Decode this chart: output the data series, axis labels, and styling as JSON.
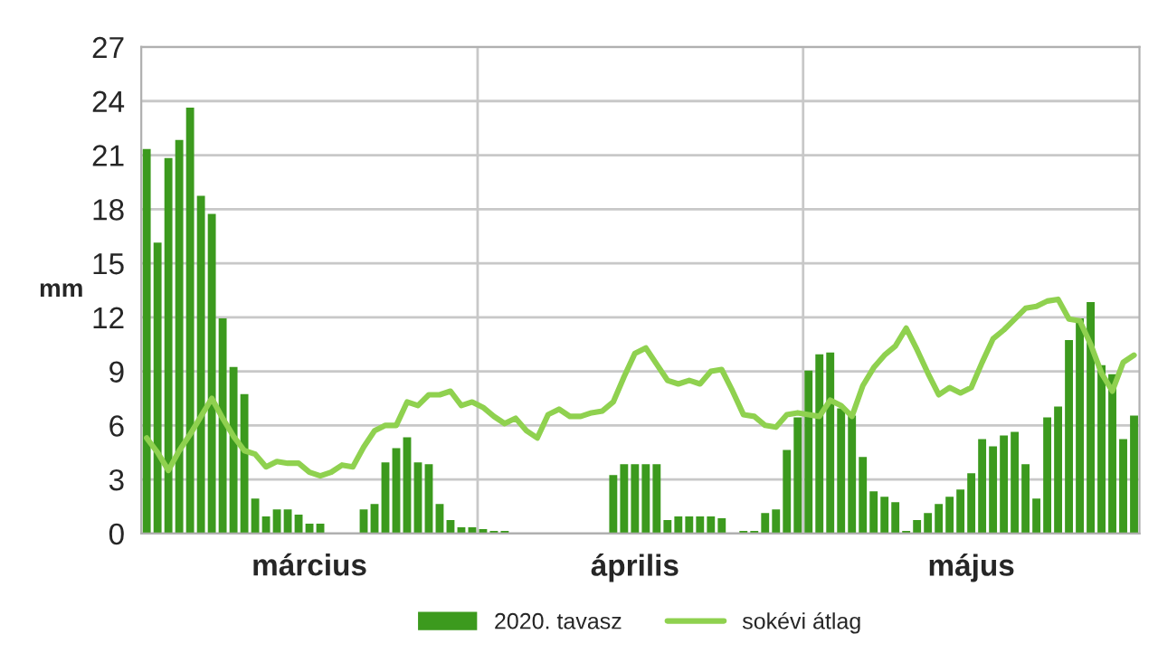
{
  "chart_data": {
    "type": "bar",
    "categories": [
      null,
      null,
      null,
      null,
      null,
      null,
      null,
      null,
      null,
      null,
      null,
      null,
      null,
      null,
      null,
      "március",
      null,
      null,
      null,
      null,
      null,
      null,
      null,
      null,
      null,
      null,
      null,
      null,
      null,
      null,
      null,
      null,
      null,
      null,
      null,
      null,
      null,
      null,
      null,
      null,
      null,
      null,
      null,
      null,
      null,
      "április",
      null,
      null,
      null,
      null,
      null,
      null,
      null,
      null,
      null,
      null,
      null,
      null,
      null,
      null,
      null,
      null,
      null,
      null,
      null,
      null,
      null,
      null,
      null,
      null,
      null,
      null,
      null,
      null,
      null,
      null,
      "május",
      null,
      null,
      null,
      null,
      null,
      null,
      null,
      null,
      null,
      null,
      null,
      null,
      null,
      null,
      null
    ],
    "series": [
      {
        "name": "2020. tavasz",
        "color": "#3c9a1e",
        "values": [
          21.3,
          16.1,
          20.8,
          21.8,
          23.6,
          18.7,
          17.7,
          11.9,
          9.2,
          7.7,
          1.9,
          0.9,
          1.3,
          1.3,
          1.0,
          0.5,
          0.5,
          0,
          0,
          0,
          1.3,
          1.6,
          3.9,
          4.7,
          5.3,
          3.9,
          3.8,
          1.6,
          0.7,
          0.3,
          0.3,
          0.2,
          0.1,
          0.1,
          0,
          0,
          0,
          0,
          0,
          0,
          0,
          0,
          0,
          3.2,
          3.8,
          3.8,
          3.8,
          3.8,
          0.7,
          0.9,
          0.9,
          0.9,
          0.9,
          0.8,
          0,
          0.1,
          0.1,
          1.1,
          1.3,
          4.6,
          6.4,
          9.0,
          9.9,
          10.0,
          6.9,
          6.5,
          4.2,
          2.3,
          2.0,
          1.7,
          0.1,
          0.7,
          1.1,
          1.6,
          2.0,
          2.4,
          3.3,
          5.2,
          4.8,
          5.4,
          5.6,
          3.8,
          1.9,
          6.4,
          7.0,
          10.7,
          11.9,
          12.8,
          9.3,
          8.8,
          5.2,
          6.5
        ]
      },
      {
        "name": "sokévi átlag",
        "type": "line",
        "color": "#8fd14f",
        "values": [
          5.3,
          4.5,
          3.5,
          4.6,
          5.5,
          6.5,
          7.5,
          6.4,
          5.4,
          4.6,
          4.4,
          3.7,
          4.0,
          3.9,
          3.9,
          3.4,
          3.2,
          3.4,
          3.8,
          3.7,
          4.8,
          5.7,
          6.0,
          6.0,
          7.3,
          7.1,
          7.7,
          7.7,
          7.9,
          7.1,
          7.3,
          7.0,
          6.5,
          6.1,
          6.4,
          5.7,
          5.3,
          6.6,
          6.9,
          6.5,
          6.5,
          6.7,
          6.8,
          7.3,
          8.7,
          10.0,
          10.3,
          9.4,
          8.5,
          8.3,
          8.5,
          8.3,
          9.0,
          9.1,
          7.9,
          6.6,
          6.5,
          6.0,
          5.9,
          6.6,
          6.7,
          6.6,
          6.5,
          7.4,
          7.1,
          6.5,
          8.2,
          9.2,
          9.9,
          10.4,
          11.4,
          10.2,
          8.9,
          7.7,
          8.1,
          7.8,
          8.1,
          9.5,
          10.8,
          11.3,
          11.9,
          12.5,
          12.6,
          12.9,
          13.0,
          11.9,
          11.8,
          10.5,
          8.9,
          7.9,
          9.5,
          9.9
        ]
      }
    ],
    "ylabel": "mm",
    "ylim": [
      0,
      27
    ],
    "yticks": [
      0,
      3,
      6,
      9,
      12,
      15,
      18,
      21,
      24,
      27
    ],
    "grid": "y",
    "legend": "bottom"
  }
}
